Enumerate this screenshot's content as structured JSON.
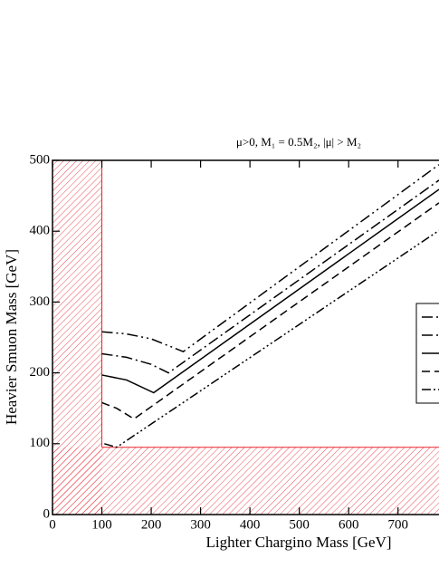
{
  "chart_data": {
    "type": "line",
    "title": "μ>0,   M₁ = 0.5M₂,  |μ| > M₂",
    "x_label": "Lighter Chargino Mass  [GeV]",
    "y_label": "Heavier Smuon Mass  [GeV]",
    "xlim": [
      0,
      783
    ],
    "ylim": [
      0,
      500
    ],
    "xticks": [
      0,
      100,
      200,
      300,
      400,
      500,
      600,
      700
    ],
    "yticks": [
      0,
      100,
      200,
      300,
      400,
      500
    ],
    "exclusion": {
      "x_max": 100,
      "y_max": 95,
      "color": "#e8202a"
    },
    "legend": "right",
    "series": [
      {
        "color": "#000000",
        "dash": "12 4 2 4 2 4",
        "x": [
          100,
          150,
          200,
          265,
          783
        ],
        "values": [
          258,
          255,
          248,
          230,
          494
        ]
      },
      {
        "color": "#000000",
        "dash": "12 4 2 4",
        "x": [
          100,
          150,
          200,
          235,
          783
        ],
        "values": [
          227,
          222,
          212,
          200,
          472
        ]
      },
      {
        "color": "#000000",
        "dash": "none",
        "x": [
          100,
          150,
          205,
          783
        ],
        "values": [
          197,
          190,
          172,
          459
        ]
      },
      {
        "color": "#000000",
        "dash": "9 5",
        "x": [
          100,
          130,
          165,
          783
        ],
        "values": [
          158,
          150,
          135,
          440
        ]
      },
      {
        "color": "#000000",
        "dash": "10 3 2 3 2 3 2 3",
        "x": [
          105,
          130,
          783
        ],
        "values": [
          100,
          95,
          401
        ]
      }
    ]
  }
}
